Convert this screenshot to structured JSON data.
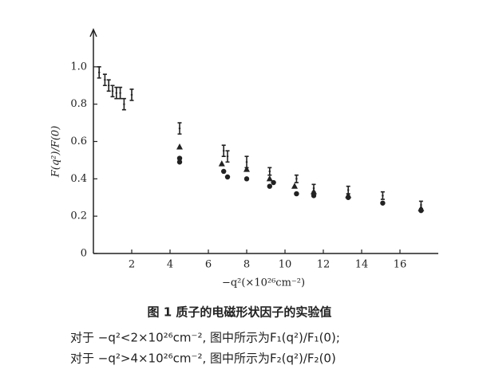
{
  "chart_data": {
    "type": "scatter",
    "x_label": "−q²(×10²⁶cm⁻²)",
    "y_label": "F(q²)/F(0)",
    "caption_title": "图 1   质子的电磁形状因子的实验值",
    "caption_lines": [
      "对于 −q²<2×10²⁶cm⁻², 图中所示为F₁(q²)/F₁(0);",
      "对于 −q²>4×10²⁶cm⁻², 图中所示为F₂(q²)/F₂(0)"
    ],
    "xlim": [
      0,
      18
    ],
    "ylim": [
      0,
      1.2
    ],
    "xticks": [
      2,
      4,
      6,
      8,
      10,
      12,
      14,
      16
    ],
    "yticks": [
      0,
      0.2,
      0.4,
      0.6,
      0.8,
      {
        "value": 1,
        "label": "1.0"
      }
    ],
    "color": "#222222",
    "series": [
      {
        "marker": "errorbar",
        "x": [
          0.3,
          0.6,
          0.8,
          1.0,
          1.2,
          1.4,
          1.6,
          2.0,
          4.5,
          6.8,
          7.0,
          8.0,
          9.2,
          10.6,
          11.5,
          13.3,
          15.1,
          17.1
        ],
        "values": [
          0.97,
          0.93,
          0.9,
          0.87,
          0.86,
          0.86,
          0.8,
          0.85,
          0.67,
          0.55,
          0.52,
          0.49,
          0.44,
          0.4,
          0.35,
          0.34,
          0.31,
          0.26
        ],
        "errors": [
          0.03,
          0.03,
          0.03,
          0.03,
          0.03,
          0.03,
          0.03,
          0.03,
          0.03,
          0.03,
          0.03,
          0.03,
          0.02,
          0.02,
          0.02,
          0.02,
          0.02,
          0.02
        ]
      },
      {
        "marker": "circle",
        "x": [
          4.5,
          4.5,
          6.8,
          7.0,
          8.0,
          9.2,
          9.4,
          10.6,
          11.5,
          13.3,
          15.1,
          17.1
        ],
        "values": [
          0.51,
          0.49,
          0.44,
          0.41,
          0.4,
          0.36,
          0.38,
          0.32,
          0.31,
          0.3,
          0.27,
          0.23
        ]
      },
      {
        "marker": "triangle",
        "x": [
          4.5,
          6.7,
          8.0,
          9.2,
          10.5,
          11.5,
          13.3,
          17.1
        ],
        "values": [
          0.57,
          0.48,
          0.45,
          0.4,
          0.36,
          0.33,
          0.31,
          0.24
        ]
      }
    ]
  }
}
